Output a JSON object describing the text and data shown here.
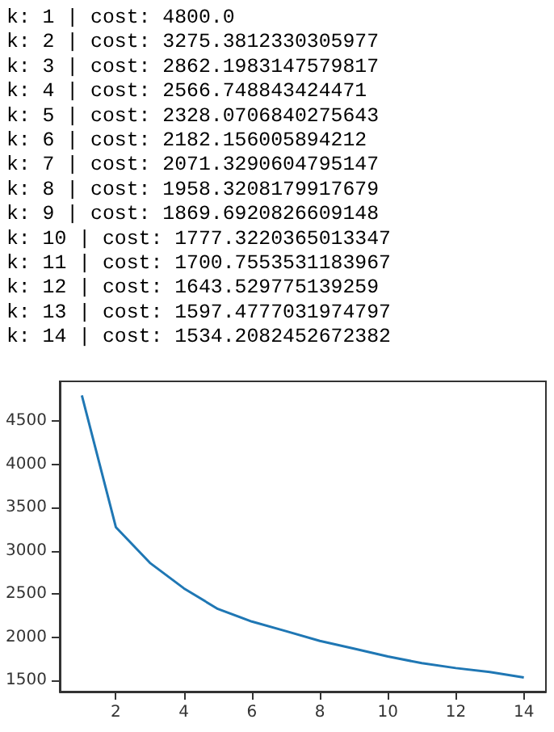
{
  "chart_data": {
    "type": "line",
    "annotations": [
      "k: 1 | cost: 4800.0",
      "k: 2 | cost: 3275.3812330305977",
      "k: 3 | cost: 2862.1983147579817",
      "k: 4 | cost: 2566.748843424471",
      "k: 5 | cost: 2328.0706840275643",
      "k: 6 | cost: 2182.156005894212",
      "k: 7 | cost: 2071.3290604795147",
      "k: 8 | cost: 1958.3208179917679",
      "k: 9 | cost: 1869.6920826609148",
      "k: 10 | cost: 1777.3220365013347",
      "k: 11 | cost: 1700.7553531183967",
      "k: 12 | cost: 1643.529775139259",
      "k: 13 | cost: 1597.4777031974797",
      "k: 14 | cost: 1534.2082452672382"
    ],
    "x": [
      1,
      2,
      3,
      4,
      5,
      6,
      7,
      8,
      9,
      10,
      11,
      12,
      13,
      14
    ],
    "series": [
      {
        "color": "#1f77b4",
        "values": [
          4800.0,
          3275.3812330305977,
          2862.1983147579817,
          2566.748843424471,
          2328.0706840275643,
          2182.156005894212,
          2071.3290604795147,
          1958.3208179917679,
          1869.6920826609148,
          1777.3220365013347,
          1700.7553531183967,
          1643.529775139259,
          1597.4777031974797,
          1534.2082452672382
        ]
      }
    ],
    "xlim": [
      0.35,
      14.65
    ],
    "xticks": [
      2,
      4,
      6,
      8,
      10,
      12,
      14
    ],
    "ylim": [
      1371,
      4963
    ],
    "yticks": [
      1500,
      2000,
      2500,
      3000,
      3500,
      4000,
      4500
    ],
    "grid": false,
    "marker": "none",
    "line_style": "solid"
  }
}
